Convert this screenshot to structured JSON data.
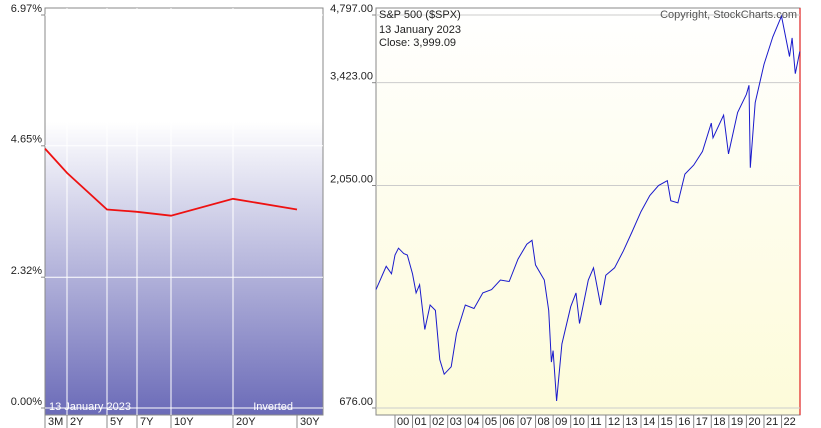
{
  "chart_data": [
    {
      "type": "line",
      "categories": [
        "3M",
        "2Y",
        "5Y",
        "7Y",
        "10Y",
        "20Y",
        "30Y"
      ],
      "values": [
        4.6,
        4.17,
        3.52,
        3.48,
        3.41,
        3.71,
        3.52
      ],
      "color": "#ee1111",
      "ylim": [
        0,
        6.97
      ],
      "yticks": [
        {
          "value": 0,
          "label": "0.00%"
        },
        {
          "value": 2.32,
          "label": "2.32%"
        },
        {
          "value": 4.65,
          "label": "4.65%"
        },
        {
          "value": 6.97,
          "label": "6.97%"
        }
      ],
      "date": "13  January 2023",
      "note": "Inverted",
      "grid": true
    },
    {
      "type": "line",
      "title": "S&P 500 ($SPX)",
      "date": "13  January 2023",
      "close": "Close: 3,999.09",
      "copyright": "Copyright, StockCharts.com",
      "log_scale": true,
      "color": "#1a1acc",
      "x": [
        1998.92,
        1999.2,
        1999.5,
        1999.8,
        2000.0,
        2000.2,
        2000.5,
        2000.7,
        2001.0,
        2001.2,
        2001.4,
        2001.7,
        2002.0,
        2002.3,
        2002.55,
        2002.8,
        2003.2,
        2003.5,
        2004.0,
        2004.5,
        2005.0,
        2005.5,
        2006.0,
        2006.5,
        2007.0,
        2007.5,
        2007.8,
        2008.0,
        2008.5,
        2008.75,
        2008.9,
        2009.0,
        2009.2,
        2009.5,
        2010.0,
        2010.3,
        2010.5,
        2011.0,
        2011.3,
        2011.7,
        2012.0,
        2012.5,
        2013.0,
        2013.5,
        2014.0,
        2014.5,
        2015.0,
        2015.5,
        2015.7,
        2016.1,
        2016.5,
        2017.0,
        2017.5,
        2018.0,
        2018.1,
        2018.7,
        2018.98,
        2019.5,
        2020.0,
        2020.15,
        2020.22,
        2020.5,
        2021.0,
        2021.5,
        2022.0,
        2022.45,
        2022.6,
        2022.78,
        2023.04
      ],
      "values": [
        1220,
        1290,
        1370,
        1320,
        1450,
        1500,
        1460,
        1450,
        1320,
        1200,
        1250,
        1000,
        1130,
        1100,
        860,
        800,
        830,
        980,
        1130,
        1110,
        1200,
        1220,
        1280,
        1270,
        1420,
        1530,
        1560,
        1380,
        1280,
        1100,
        850,
        900,
        700,
        930,
        1120,
        1200,
        1030,
        1280,
        1360,
        1130,
        1310,
        1360,
        1480,
        1630,
        1800,
        1950,
        2050,
        2100,
        1900,
        1880,
        2170,
        2270,
        2430,
        2800,
        2600,
        2910,
        2400,
        2950,
        3230,
        3380,
        2240,
        3100,
        3750,
        4300,
        4770,
        3900,
        4280,
        3580,
        3999.09
      ],
      "xlim": [
        1998.92,
        2023.05
      ],
      "xticks": [
        {
          "value": 2000,
          "label": "00"
        },
        {
          "value": 2001,
          "label": "01"
        },
        {
          "value": 2002,
          "label": "02"
        },
        {
          "value": 2003,
          "label": "03"
        },
        {
          "value": 2004,
          "label": "04"
        },
        {
          "value": 2005,
          "label": "05"
        },
        {
          "value": 2006,
          "label": "06"
        },
        {
          "value": 2007,
          "label": "07"
        },
        {
          "value": 2008,
          "label": "08"
        },
        {
          "value": 2009,
          "label": "09"
        },
        {
          "value": 2010,
          "label": "10"
        },
        {
          "value": 2011,
          "label": "11"
        },
        {
          "value": 2012,
          "label": "12"
        },
        {
          "value": 2013,
          "label": "13"
        },
        {
          "value": 2014,
          "label": "14"
        },
        {
          "value": 2015,
          "label": "15"
        },
        {
          "value": 2016,
          "label": "16"
        },
        {
          "value": 2017,
          "label": "17"
        },
        {
          "value": 2018,
          "label": "18"
        },
        {
          "value": 2019,
          "label": "19"
        },
        {
          "value": 2020,
          "label": "20"
        },
        {
          "value": 2021,
          "label": "21"
        },
        {
          "value": 2022,
          "label": "22"
        }
      ],
      "ylim": [
        676,
        4797
      ],
      "yticks": [
        {
          "value": 676,
          "label": "676.00"
        },
        {
          "value": 2050,
          "label": "2,050.00"
        },
        {
          "value": 3423,
          "label": "3,423.00"
        },
        {
          "value": 4797,
          "label": "4,797.00"
        }
      ],
      "grid": true
    }
  ]
}
